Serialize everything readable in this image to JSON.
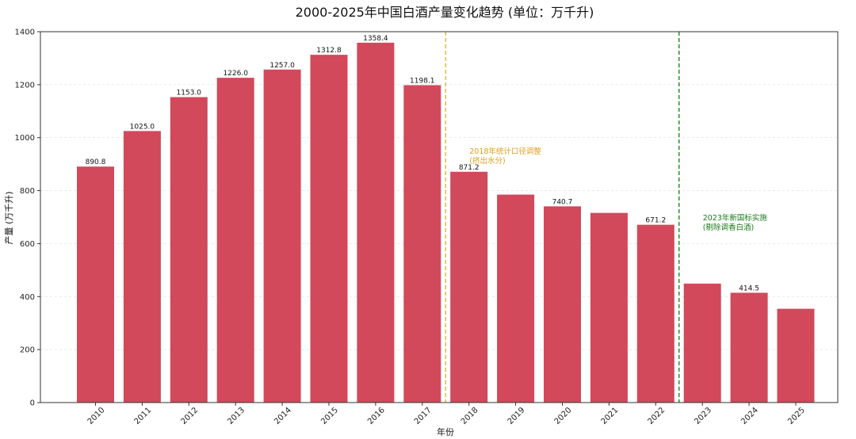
{
  "chart_data": {
    "type": "bar",
    "title": "2000-2025年中国白酒产量变化趋势 (单位：万千升)",
    "xlabel": "年份",
    "ylabel": "产量 (万千升)",
    "ylim": [
      0,
      1400
    ],
    "yticks": [
      0,
      200,
      400,
      600,
      800,
      1000,
      1200,
      1400
    ],
    "grid": "horizontal-dashed",
    "bar_color": "#d1495b",
    "categories": [
      "2010",
      "2011",
      "2012",
      "2013",
      "2014",
      "2015",
      "2016",
      "2017",
      "2018",
      "2019",
      "2020",
      "2021",
      "2022",
      "2023",
      "2024",
      "2025"
    ],
    "values": [
      890.8,
      1025.0,
      1153.0,
      1226.0,
      1257.0,
      1312.8,
      1358.4,
      1198.1,
      871.2,
      785,
      740.7,
      716,
      671.2,
      449,
      414.5,
      354
    ],
    "data_labels": [
      "890.8",
      "1025.0",
      "1153.0",
      "1226.0",
      "1257.0",
      "1312.8",
      "1358.4",
      "1198.1",
      "871.2",
      "",
      "740.7",
      "",
      "671.2",
      "",
      "414.5",
      ""
    ],
    "reference_lines": [
      {
        "after_category": "2017",
        "color": "#e0b830",
        "style": "dashed",
        "annotation": [
          "2018年统计口径调整",
          "(挤出水分)"
        ],
        "annotation_color": "#e0a020"
      },
      {
        "after_category": "2022",
        "color": "#1a8a1a",
        "style": "dashed",
        "annotation": [
          "2023年新国标实施",
          "(剔除调香白酒)"
        ],
        "annotation_color": "#1a7a1a"
      }
    ]
  }
}
